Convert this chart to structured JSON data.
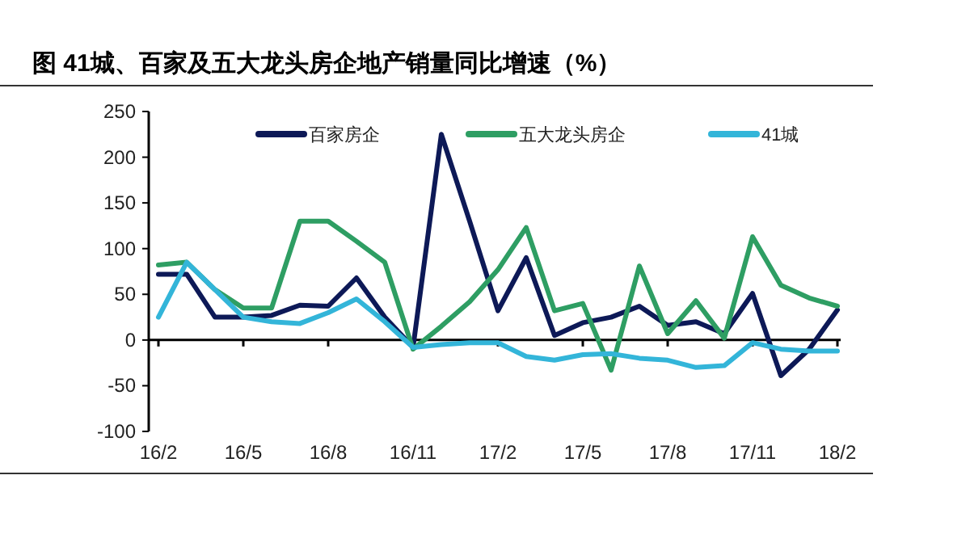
{
  "chart_data": {
    "type": "line",
    "title": "图    41城、百家及五大龙头房企地产销量同比增速（%）",
    "categories": [
      "16/2",
      null,
      null,
      "16/5",
      null,
      null,
      "16/8",
      null,
      null,
      "16/11",
      null,
      null,
      "17/2",
      null,
      null,
      "17/5",
      null,
      null,
      "17/8",
      null,
      null,
      "17/11",
      null,
      null,
      "18/2"
    ],
    "series": [
      {
        "name": "百家房企",
        "color": "#0d1957",
        "values": [
          72,
          72,
          25,
          25,
          27,
          38,
          37,
          68,
          25,
          -8,
          225,
          130,
          32,
          90,
          5,
          19,
          25,
          37,
          16,
          20,
          7,
          51,
          -39,
          -10,
          33
        ]
      },
      {
        "name": "五大龙头房企",
        "color": "#2e9e63",
        "values": [
          82,
          85,
          55,
          35,
          35,
          130,
          130,
          108,
          85,
          -10,
          15,
          42,
          77,
          123,
          32,
          40,
          -33,
          81,
          7,
          43,
          2,
          113,
          60,
          46,
          37
        ]
      },
      {
        "name": "41城",
        "color": "#33b5d9",
        "values": [
          25,
          85,
          55,
          25,
          20,
          18,
          30,
          45,
          20,
          -8,
          -5,
          -3,
          -3,
          -18,
          -22,
          -16,
          -15,
          -20,
          -22,
          -30,
          -28,
          -3,
          -10,
          -12,
          -12
        ]
      }
    ],
    "ylim": [
      -100,
      250
    ],
    "yticks": [
      -100,
      -50,
      0,
      50,
      100,
      150,
      200,
      250
    ],
    "legend": "top",
    "line_style": "solid",
    "marker": "none"
  }
}
